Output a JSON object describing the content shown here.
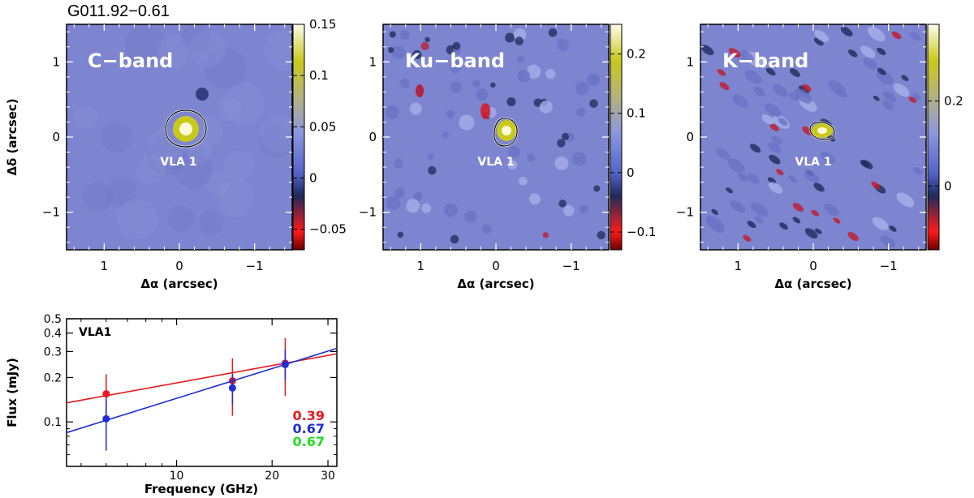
{
  "figure_title": "G011.92−0.61",
  "chart_data": [
    {
      "type": "heatmap",
      "panel_label": "C−band",
      "source_label": "VLA 1",
      "xlabel": "Δα (arcsec)",
      "ylabel": "Δδ (arcsec)",
      "xlim": [
        1.5,
        -1.5
      ],
      "ylim": [
        -1.5,
        1.5
      ],
      "x_ticks": [
        "1",
        "0",
        "−1"
      ],
      "y_ticks": [
        "1",
        "0",
        "−1"
      ],
      "colorbar": {
        "range": [
          -0.07,
          0.15
        ],
        "ticks": [
          "0.15",
          "0.1",
          "0.05",
          "0",
          "−0.05"
        ],
        "tick_values": [
          0.15,
          0.1,
          0.05,
          0,
          -0.05
        ]
      },
      "peak": {
        "x": -0.1,
        "y": 0.1,
        "value": 0.15
      },
      "noise_style": "smooth"
    },
    {
      "type": "heatmap",
      "panel_label": "Ku−band",
      "source_label": "VLA 1",
      "xlabel": "Δα (arcsec)",
      "ylabel": "",
      "xlim": [
        1.5,
        -1.5
      ],
      "ylim": [
        -1.5,
        1.5
      ],
      "x_ticks": [
        "1",
        "0",
        "−1"
      ],
      "y_ticks": [
        "1",
        "0",
        "−1"
      ],
      "colorbar": {
        "range": [
          -0.13,
          0.25
        ],
        "ticks": [
          "0.2",
          "0.1",
          "0",
          "−0.1"
        ],
        "tick_values": [
          0.2,
          0.1,
          0,
          -0.1
        ]
      },
      "peak": {
        "x": -0.1,
        "y": 0.1,
        "value": 0.25
      },
      "noise_style": "medium"
    },
    {
      "type": "heatmap",
      "panel_label": "K−band",
      "source_label": "VLA 1",
      "xlabel": "Δα (arcsec)",
      "ylabel": "",
      "xlim": [
        1.5,
        -1.5
      ],
      "ylim": [
        -1.5,
        1.5
      ],
      "x_ticks": [
        "1",
        "0",
        "−1"
      ],
      "y_ticks": [
        "1",
        "0",
        "−1"
      ],
      "colorbar": {
        "range": [
          -0.15,
          0.38
        ],
        "ticks": [
          "0.2",
          "0"
        ],
        "tick_values": [
          0.2,
          0
        ]
      },
      "peak": {
        "x": -0.1,
        "y": 0.1,
        "value": 0.35
      },
      "noise_style": "striped"
    },
    {
      "type": "scatter",
      "title": "VLA1",
      "xlabel": "Frequency (GHz)",
      "ylabel": "Flux (mJy)",
      "xscale": "log",
      "yscale": "log",
      "xlim": [
        4.5,
        32
      ],
      "ylim": [
        0.05,
        0.5
      ],
      "x_ticks": [
        "10",
        "20",
        "30"
      ],
      "x_tick_values": [
        10,
        20,
        30
      ],
      "y_ticks": [
        "0.1",
        "0.2",
        "0.3",
        "0.4",
        "0.5"
      ],
      "y_tick_values": [
        0.1,
        0.2,
        0.3,
        0.4,
        0.5
      ],
      "series": [
        {
          "name": "red",
          "color": "#e8181c",
          "points": [
            {
              "x": 6,
              "y": 0.155,
              "lo": 0.1,
              "hi": 0.21
            },
            {
              "x": 15,
              "y": 0.19,
              "lo": 0.11,
              "hi": 0.27
            },
            {
              "x": 22,
              "y": 0.25,
              "lo": 0.15,
              "hi": 0.37
            }
          ],
          "fit": {
            "slope": 0.39,
            "at": 22,
            "value": 0.25
          }
        },
        {
          "name": "blue",
          "color": "#1e2fd6",
          "points": [
            {
              "x": 6,
              "y": 0.105,
              "lo": 0.064,
              "hi": 0.145
            },
            {
              "x": 15,
              "y": 0.17,
              "lo": 0.13,
              "hi": 0.21
            },
            {
              "x": 22,
              "y": 0.245,
              "lo": 0.19,
              "hi": 0.31
            }
          ],
          "fit": {
            "slope": 0.67,
            "at": 22,
            "value": 0.245
          }
        }
      ],
      "annotations": [
        {
          "text": "0.39",
          "color": "#e8181c"
        },
        {
          "text": "0.67",
          "color": "#1e2fd6"
        },
        {
          "text": "0.67",
          "color": "#22dd22"
        }
      ]
    }
  ]
}
